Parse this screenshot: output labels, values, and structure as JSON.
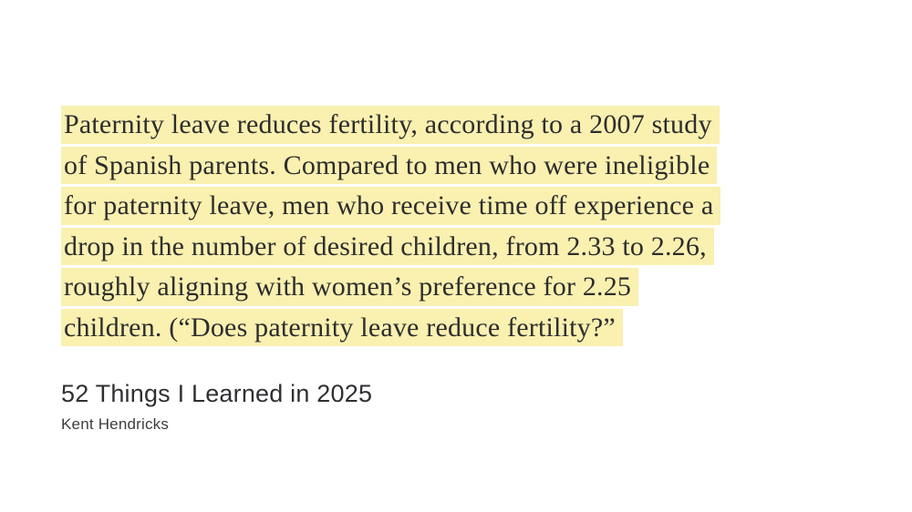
{
  "quote": {
    "lines": [
      "Paternity leave reduces fertility, according to a 2007 study",
      "of Spanish parents. Compared to men who were ineligible",
      "for paternity leave, men who receive time off experience a",
      "drop in the number of desired children, from 2.33 to 2.26,",
      "roughly aligning with women’s preference for 2.25",
      "children. (“Does paternity leave reduce fertility?”"
    ],
    "full_text": "Paternity leave reduces fertility, according to a 2007 study of Spanish parents. Compared to men who were ineligible for paternity leave, men who receive time off experience a drop in the number of desired children, from 2.33 to 2.26, roughly aligning with women’s preference for 2.25 children. (“Does paternity leave reduce fertility?”"
  },
  "source": {
    "title": "52 Things I Learned in 2025",
    "author": "Kent Hendricks"
  },
  "colors": {
    "bg": "#ffffff",
    "highlight": "#faf0b0",
    "quote-text": "#2d2d2d",
    "title-text": "#2e3033",
    "author-text": "#3a3d40"
  }
}
